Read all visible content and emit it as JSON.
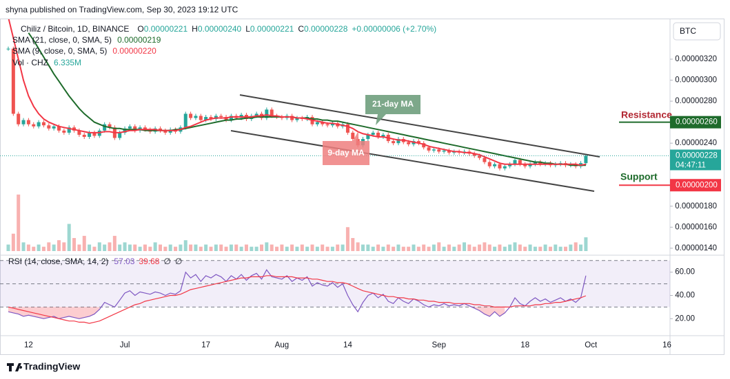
{
  "header": {
    "published": "shyna published on TradingView.com, Sep 30, 2023 19:12 UTC",
    "currency": "BTC"
  },
  "footer": {
    "brand": "TradingView"
  },
  "legend": {
    "symbol": "Chiliz / Bitcoin, 1D, BINANCE",
    "ohlc": [
      {
        "key": "O",
        "value": "0.00000221"
      },
      {
        "key": "H",
        "value": "0.00000240"
      },
      {
        "key": "L",
        "value": "0.00000221"
      },
      {
        "key": "C",
        "value": "0.00000228"
      }
    ],
    "change": "+0.00000006 (+2.70%)",
    "indicators": [
      {
        "name": "SMA (21, close, 0, SMA, 5)",
        "value": "0.00000219"
      },
      {
        "name": "SMA (9, close, 0, SMA, 5)",
        "value": "0.00000220"
      },
      {
        "name": "Vol · CHZ",
        "value": "6.335M"
      }
    ]
  },
  "rsi_legend": {
    "name": "RSI (14, close, SMA, 14, 2)",
    "values": [
      "57.03",
      "39.68",
      "∅",
      "∅"
    ]
  },
  "annotations": {
    "ma21": "21-day MA",
    "ma9": "9-day MA",
    "resistance": "Resistance",
    "support": "Support"
  },
  "chart_data": {
    "type": "candlestick",
    "up_color": "#26a69a",
    "down_color": "#ef5350",
    "sma21_color": "#1e6b2b",
    "sma9_color": "#f23645",
    "rsi_color": "#7e57c2",
    "rsi_ma_color": "#f23645",
    "categories": [
      null,
      null,
      null,
      null,
      "12",
      null,
      null,
      null,
      null,
      null,
      null,
      null,
      null,
      null,
      null,
      null,
      null,
      null,
      null,
      null,
      null,
      null,
      null,
      "Jul",
      null,
      null,
      null,
      null,
      null,
      null,
      null,
      null,
      null,
      null,
      null,
      null,
      null,
      null,
      null,
      "17",
      null,
      null,
      null,
      null,
      null,
      null,
      null,
      null,
      null,
      null,
      null,
      null,
      null,
      null,
      "Aug",
      null,
      null,
      null,
      null,
      null,
      null,
      null,
      null,
      null,
      null,
      null,
      null,
      "14",
      null,
      null,
      null,
      null,
      null,
      null,
      null,
      null,
      null,
      null,
      null,
      null,
      null,
      null,
      null,
      null,
      null,
      "Sep",
      null,
      null,
      null,
      null,
      null,
      null,
      null,
      null,
      null,
      null,
      null,
      null,
      null,
      null,
      null,
      null,
      "18",
      null,
      null,
      null,
      null,
      null,
      null,
      null,
      null,
      null,
      null,
      null,
      null,
      "Oct",
      null,
      null,
      null,
      null,
      null,
      null,
      null,
      null,
      null,
      null,
      null,
      null,
      null,
      null,
      "16"
    ],
    "close": [
      3.3e-06,
      2.68e-06,
      2.58e-06,
      2.62e-06,
      2.58e-06,
      2.56e-06,
      2.6e-06,
      2.57e-06,
      2.54e-06,
      2.56e-06,
      2.52e-06,
      2.5e-06,
      2.55e-06,
      2.52e-06,
      2.48e-06,
      2.46e-06,
      2.5e-06,
      2.47e-06,
      2.52e-06,
      2.58e-06,
      2.55e-06,
      2.45e-06,
      2.5e-06,
      2.54e-06,
      2.56e-06,
      2.52e-06,
      2.55e-06,
      2.53e-06,
      2.51e-06,
      2.54e-06,
      2.52e-06,
      2.5e-06,
      2.53e-06,
      2.51e-06,
      2.55e-06,
      2.68e-06,
      2.64e-06,
      2.66e-06,
      2.62e-06,
      2.65e-06,
      2.63e-06,
      2.66e-06,
      2.65e-06,
      2.62e-06,
      2.66e-06,
      2.64e-06,
      2.67e-06,
      2.63e-06,
      2.66e-06,
      2.68e-06,
      2.64e-06,
      2.72e-06,
      2.66e-06,
      2.65e-06,
      2.64e-06,
      2.66e-06,
      2.62e-06,
      2.64e-06,
      2.63e-06,
      2.65e-06,
      2.58e-06,
      2.6e-06,
      2.58e-06,
      2.57e-06,
      2.59e-06,
      2.56e-06,
      2.58e-06,
      2.5e-06,
      2.44e-06,
      2.38e-06,
      2.44e-06,
      2.48e-06,
      2.5e-06,
      2.46e-06,
      2.48e-06,
      2.42e-06,
      2.4e-06,
      2.44e-06,
      2.41e-06,
      2.39e-06,
      2.42e-06,
      2.4e-06,
      2.36e-06,
      2.33e-06,
      2.34e-06,
      2.32e-06,
      2.33e-06,
      2.31e-06,
      2.32e-06,
      2.31e-06,
      2.32e-06,
      2.3e-06,
      2.28e-06,
      2.26e-06,
      2.22e-06,
      2.18e-06,
      2.2e-06,
      2.16e-06,
      2.18e-06,
      2.2e-06,
      2.24e-06,
      2.2e-06,
      2.18e-06,
      2.2e-06,
      2.22e-06,
      2.2e-06,
      2.21e-06,
      2.19e-06,
      2.2e-06,
      2.21e-06,
      2.19e-06,
      2.2e-06,
      2.18e-06,
      2.21e-06,
      2.28e-06,
      null,
      null,
      null,
      null,
      null,
      null,
      null,
      null,
      null,
      null,
      null,
      null,
      null,
      null,
      null,
      null
    ],
    "sma21": [
      null,
      null,
      null,
      null,
      3.45e-06,
      3.38e-06,
      3.3e-06,
      3.22e-06,
      3.14e-06,
      3.06e-06,
      2.99e-06,
      2.92e-06,
      2.85e-06,
      2.79e-06,
      2.73e-06,
      2.68e-06,
      2.64e-06,
      2.6e-06,
      2.58e-06,
      2.56e-06,
      2.55e-06,
      2.54e-06,
      2.54e-06,
      2.53e-06,
      2.53e-06,
      2.53e-06,
      2.53e-06,
      2.52e-06,
      2.52e-06,
      2.52e-06,
      2.52e-06,
      2.52e-06,
      2.52e-06,
      2.53e-06,
      2.53e-06,
      2.54e-06,
      2.55e-06,
      2.56e-06,
      2.57e-06,
      2.58e-06,
      2.59e-06,
      2.6e-06,
      2.61e-06,
      2.62e-06,
      2.62e-06,
      2.63e-06,
      2.63e-06,
      2.64e-06,
      2.64e-06,
      2.65e-06,
      2.65e-06,
      2.65e-06,
      2.65e-06,
      2.65e-06,
      2.65e-06,
      2.65e-06,
      2.65e-06,
      2.64e-06,
      2.64e-06,
      2.64e-06,
      2.63e-06,
      2.63e-06,
      2.62e-06,
      2.62e-06,
      2.61e-06,
      2.61e-06,
      2.6e-06,
      2.59e-06,
      2.58e-06,
      2.57e-06,
      2.56e-06,
      2.55e-06,
      2.54e-06,
      2.53e-06,
      2.52e-06,
      2.51e-06,
      2.5e-06,
      2.49e-06,
      2.48e-06,
      2.47e-06,
      2.46e-06,
      2.45e-06,
      2.44e-06,
      2.43e-06,
      2.42e-06,
      2.41e-06,
      2.4e-06,
      2.39e-06,
      2.38e-06,
      2.37e-06,
      2.36e-06,
      2.35e-06,
      2.34e-06,
      2.33e-06,
      2.32e-06,
      2.31e-06,
      2.3e-06,
      2.29e-06,
      2.28e-06,
      2.27e-06,
      2.26e-06,
      2.25e-06,
      2.24e-06,
      2.23e-06,
      2.22e-06,
      2.22e-06,
      2.21e-06,
      2.21e-06,
      2.2e-06,
      2.2e-06,
      2.2e-06,
      2.19e-06,
      2.19e-06,
      2.19e-06,
      2.19e-06,
      null,
      null,
      null,
      null,
      null,
      null,
      null,
      null,
      null,
      null,
      null,
      null,
      null,
      null,
      null,
      null
    ],
    "sma9": [
      3.6e-06,
      3.4e-06,
      3.2e-06,
      3e-06,
      2.85e-06,
      2.75e-06,
      2.68e-06,
      2.63e-06,
      2.6e-06,
      2.58e-06,
      2.56e-06,
      2.55e-06,
      2.54e-06,
      2.53e-06,
      2.52e-06,
      2.51e-06,
      2.5e-06,
      2.5e-06,
      2.5e-06,
      2.51e-06,
      2.51e-06,
      2.5e-06,
      2.5e-06,
      2.51e-06,
      2.52e-06,
      2.52e-06,
      2.53e-06,
      2.53e-06,
      2.53e-06,
      2.53e-06,
      2.52e-06,
      2.52e-06,
      2.52e-06,
      2.52e-06,
      2.53e-06,
      2.55e-06,
      2.56e-06,
      2.58e-06,
      2.6e-06,
      2.62e-06,
      2.63e-06,
      2.64e-06,
      2.64e-06,
      2.64e-06,
      2.65e-06,
      2.65e-06,
      2.65e-06,
      2.65e-06,
      2.65e-06,
      2.66e-06,
      2.66e-06,
      2.67e-06,
      2.66e-06,
      2.66e-06,
      2.65e-06,
      2.65e-06,
      2.65e-06,
      2.64e-06,
      2.64e-06,
      2.63e-06,
      2.62e-06,
      2.61e-06,
      2.6e-06,
      2.59e-06,
      2.59e-06,
      2.58e-06,
      2.57e-06,
      2.56e-06,
      2.54e-06,
      2.51e-06,
      2.49e-06,
      2.48e-06,
      2.47e-06,
      2.46e-06,
      2.46e-06,
      2.45e-06,
      2.44e-06,
      2.43e-06,
      2.43e-06,
      2.42e-06,
      2.41e-06,
      2.4e-06,
      2.39e-06,
      2.37e-06,
      2.36e-06,
      2.35e-06,
      2.34e-06,
      2.33e-06,
      2.32e-06,
      2.32e-06,
      2.31e-06,
      2.31e-06,
      2.3e-06,
      2.29e-06,
      2.27e-06,
      2.25e-06,
      2.23e-06,
      2.21e-06,
      2.2e-06,
      2.2e-06,
      2.2e-06,
      2.2e-06,
      2.2e-06,
      2.2e-06,
      2.2e-06,
      2.2e-06,
      2.2e-06,
      2.2e-06,
      2.2e-06,
      2.2e-06,
      2.2e-06,
      2.2e-06,
      2.2e-06,
      2.19e-06,
      2.2e-06,
      null,
      null,
      null,
      null,
      null,
      null,
      null,
      null,
      null,
      null,
      null,
      null,
      null,
      null,
      null,
      null
    ],
    "volume": [
      3,
      8,
      26,
      4,
      3,
      2,
      3,
      2,
      4,
      3,
      5,
      4,
      12.5,
      6,
      3,
      7,
      3,
      2,
      4,
      3,
      4,
      7,
      3,
      4,
      3,
      3,
      2,
      3,
      2,
      4,
      3,
      2,
      3,
      2,
      3,
      5,
      3,
      3,
      2,
      3,
      2,
      3,
      3,
      2,
      3,
      3,
      2,
      3,
      2,
      2,
      3,
      4,
      3,
      2,
      3,
      2,
      3,
      2,
      3,
      2,
      3,
      2,
      3,
      2,
      2,
      3,
      3,
      11,
      6,
      4,
      3,
      3,
      2,
      3,
      2,
      3,
      2,
      3,
      2,
      2,
      3,
      2,
      3,
      2,
      3,
      4,
      2,
      3,
      2,
      3,
      4,
      3,
      2,
      3,
      4,
      3,
      2,
      3,
      2,
      3,
      4,
      3,
      2,
      3,
      2,
      2,
      3,
      2,
      3,
      2,
      2,
      3,
      4,
      3,
      6.335,
      null,
      null,
      null,
      null,
      null,
      null,
      null,
      null,
      null,
      null,
      null,
      null,
      null,
      null,
      null,
      null
    ],
    "rsi": [
      26,
      25,
      24,
      22,
      23,
      22,
      21,
      20,
      21,
      22,
      20,
      21,
      22,
      21,
      20,
      21,
      22,
      24,
      28,
      34,
      32,
      30,
      36,
      42,
      44,
      40,
      43,
      42,
      41,
      43,
      42,
      40,
      42,
      41,
      44,
      60,
      55,
      58,
      52,
      57,
      55,
      58,
      56,
      52,
      57,
      54,
      58,
      53,
      57,
      59,
      54,
      62,
      56,
      55,
      54,
      57,
      52,
      55,
      53,
      56,
      48,
      51,
      49,
      48,
      51,
      47,
      50,
      40,
      32,
      26,
      34,
      40,
      42,
      38,
      41,
      35,
      33,
      38,
      35,
      33,
      37,
      35,
      32,
      30,
      32,
      31,
      33,
      31,
      32,
      31,
      33,
      31,
      29,
      27,
      24,
      22,
      26,
      22,
      25,
      30,
      38,
      33,
      31,
      35,
      38,
      35,
      37,
      34,
      36,
      38,
      35,
      37,
      34,
      38,
      57.03,
      null,
      null,
      null,
      null,
      null,
      null,
      null,
      null,
      null,
      null,
      null,
      null,
      null,
      null,
      null,
      null
    ],
    "rsi_ma": [
      30,
      29,
      28,
      27,
      26,
      25,
      24,
      23,
      22,
      21,
      20,
      19,
      18,
      18,
      17,
      17,
      16,
      17,
      18,
      20,
      22,
      24,
      26,
      28,
      30,
      32,
      33,
      35,
      36,
      37,
      38,
      39,
      40,
      40,
      41,
      43,
      45,
      46,
      47,
      48,
      49,
      50,
      51,
      52,
      53,
      54,
      55,
      55,
      56,
      56,
      56,
      57,
      57,
      56,
      56,
      56,
      56,
      55,
      55,
      55,
      54,
      54,
      53,
      52,
      52,
      51,
      51,
      50,
      48,
      46,
      44,
      43,
      42,
      41,
      40,
      39,
      39,
      38,
      38,
      37,
      37,
      36,
      36,
      35,
      35,
      34,
      34,
      34,
      33,
      33,
      33,
      33,
      32,
      32,
      31,
      31,
      30,
      30,
      30,
      30,
      31,
      31,
      31,
      31,
      32,
      32,
      33,
      33,
      34,
      34,
      35,
      36,
      37,
      38,
      39.68,
      null,
      null,
      null,
      null,
      null,
      null,
      null,
      null,
      null,
      null,
      null,
      null,
      null,
      null,
      null,
      null
    ],
    "ylim": [
      1.34e-06,
      3.58e-06
    ],
    "yticks": [
      {
        "value": 3.2e-06,
        "label": "0.00000320"
      },
      {
        "value": 3e-06,
        "label": "0.00000300"
      },
      {
        "value": 2.8e-06,
        "label": "0.00000280"
      },
      {
        "value": 2.4e-06,
        "label": "0.00000240"
      },
      {
        "value": 1.8e-06,
        "label": "0.00000180"
      },
      {
        "value": 1.6e-06,
        "label": "0.00000160"
      },
      {
        "value": 1.4e-06,
        "label": "0.00000140"
      }
    ],
    "price_levels": [
      {
        "value": 2.6e-06,
        "label": "0.00000260",
        "color": "#1e6b2b"
      },
      {
        "value": 2e-06,
        "label": "0.00000200",
        "color": "#f23645"
      }
    ],
    "current_price": {
      "value": 2.28e-06,
      "label": "0.00000228",
      "countdown": "04:47:11"
    },
    "rsi_ylim": [
      6,
      74
    ],
    "rsi_yticks": [
      {
        "value": 60,
        "label": "60.00"
      },
      {
        "value": 40,
        "label": "40.00"
      },
      {
        "value": 20,
        "label": "20.00"
      }
    ],
    "rsi_levels": [
      70,
      50,
      30
    ]
  }
}
